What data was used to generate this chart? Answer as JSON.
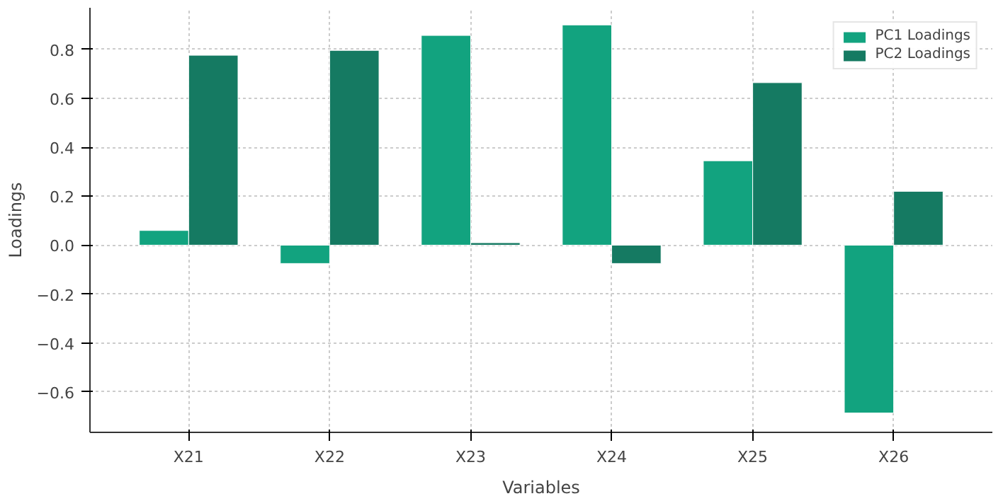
{
  "chart_data": {
    "type": "bar",
    "xlabel": "Variables",
    "ylabel": "Loadings",
    "categories": [
      "X21",
      "X22",
      "X23",
      "X24",
      "X25",
      "X26"
    ],
    "series": [
      {
        "name": "PC1 Loadings",
        "color": "#12a37f",
        "values": [
          0.06,
          -0.075,
          0.857,
          0.9,
          0.345,
          -0.686
        ]
      },
      {
        "name": "PC2 Loadings",
        "color": "#157a62",
        "values": [
          0.776,
          0.796,
          0.01,
          -0.075,
          0.664,
          0.22
        ]
      }
    ],
    "ylim": [
      -0.765,
      0.97
    ],
    "yticks": [
      {
        "value": -0.6,
        "label": "−0.6"
      },
      {
        "value": -0.4,
        "label": "−0.4"
      },
      {
        "value": -0.2,
        "label": "−0.2"
      },
      {
        "value": 0,
        "label": "0.0"
      },
      {
        "value": 0.2,
        "label": "0.2"
      },
      {
        "value": 0.4,
        "label": "0.4"
      },
      {
        "value": 0.6,
        "label": "0.6"
      },
      {
        "value": 0.8,
        "label": "0.8"
      }
    ],
    "grid": true,
    "legend": "top right"
  }
}
